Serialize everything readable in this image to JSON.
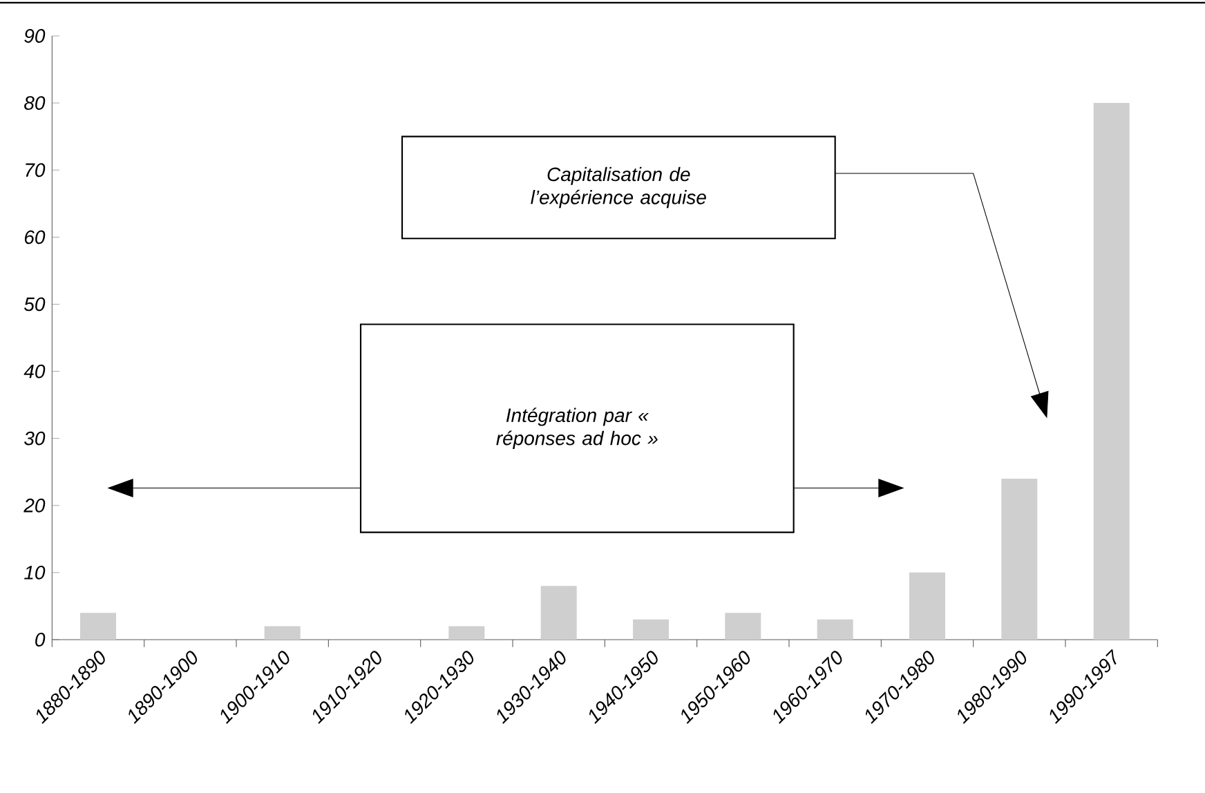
{
  "chart_data": {
    "type": "bar",
    "categories": [
      "1880-1890",
      "1890-1900",
      "1900-1910",
      "1910-1920",
      "1920-1930",
      "1930-1940",
      "1940-1950",
      "1950-1960",
      "1960-1970",
      "1970-1980",
      "1980-1990",
      "1990-1997"
    ],
    "values": [
      4,
      0,
      2,
      0,
      2,
      8,
      3,
      4,
      3,
      10,
      24,
      80
    ],
    "color": "#cfcfcf",
    "ylim": [
      0,
      90
    ],
    "yticks": [
      0,
      10,
      20,
      30,
      40,
      50,
      60,
      70,
      80,
      90
    ],
    "grid": false,
    "annotations": [
      "Capitalisation de l’expérience acquise",
      "Intégration par « réponses ad hoc »"
    ]
  }
}
